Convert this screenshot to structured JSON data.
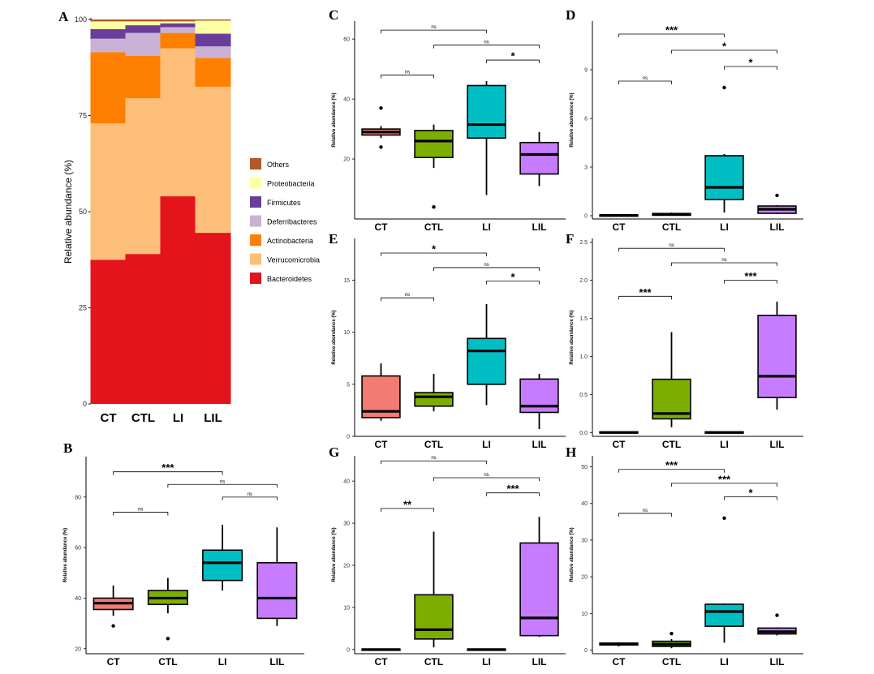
{
  "chart_data": [
    {
      "panel": "A",
      "type": "bar",
      "stacked": true,
      "categories": [
        "CT",
        "CTL",
        "LI",
        "LIL"
      ],
      "ylabel": "Relative abundance (%)",
      "ylim": [
        0,
        100
      ],
      "yticks": [
        "0",
        "25",
        "50",
        "75",
        "100"
      ],
      "series": [
        {
          "name": "Bacteroidetes",
          "color": "#E3141B",
          "values": [
            37.5,
            39,
            54,
            44.5
          ]
        },
        {
          "name": "Verrucomicrobia",
          "color": "#FDBE79",
          "values": [
            35.5,
            40.5,
            38.5,
            38
          ]
        },
        {
          "name": "Actinobacteria",
          "color": "#FF7F00",
          "values": [
            18.5,
            11,
            4,
            7.5
          ]
        },
        {
          "name": "Deferribacteres",
          "color": "#CAB2D6",
          "values": [
            3.5,
            6,
            1.5,
            3
          ]
        },
        {
          "name": "Firmicutes",
          "color": "#6A3D9A",
          "values": [
            2.5,
            2,
            1,
            3.3
          ]
        },
        {
          "name": "Proteobacteria",
          "color": "#FFFFA3",
          "values": [
            2,
            1,
            0.5,
            3.4
          ]
        },
        {
          "name": "Others",
          "color": "#B15928",
          "values": [
            0.5,
            0.5,
            0.5,
            0.3
          ]
        }
      ],
      "legend_order": [
        "Others",
        "Proteobacteria",
        "Firmicutes",
        "Deferribacteres",
        "Actinobacteria",
        "Verrucomicrobia",
        "Bacteroidetes"
      ]
    },
    {
      "panel": "B",
      "type": "box",
      "categories": [
        "CT",
        "CTL",
        "LI",
        "LIL"
      ],
      "ylabel": "Relative abundance (%)",
      "ylim": [
        18,
        96
      ],
      "yticks": [
        20,
        40,
        60,
        80
      ],
      "boxes": [
        {
          "min": 33,
          "q1": 35.5,
          "median": 38,
          "q3": 40,
          "max": 45,
          "outliers": [
            29
          ]
        },
        {
          "min": 34,
          "q1": 37.5,
          "median": 40,
          "q3": 43,
          "max": 48,
          "outliers": [
            24
          ]
        },
        {
          "min": 43,
          "q1": 47,
          "median": 54,
          "q3": 59,
          "max": 69,
          "outliers": []
        },
        {
          "min": 29,
          "q1": 32,
          "median": 40,
          "q3": 54,
          "max": 68,
          "outliers": []
        }
      ],
      "comparisons": [
        {
          "from": "CT",
          "to": "LI",
          "label": "***",
          "y": 90
        },
        {
          "from": "CT",
          "to": "CTL",
          "label": "ns",
          "y": 74
        },
        {
          "from": "CTL",
          "to": "LIL",
          "label": "ns",
          "y": 85
        },
        {
          "from": "LI",
          "to": "LIL",
          "label": "ns",
          "y": 80
        }
      ]
    },
    {
      "panel": "C",
      "type": "box",
      "categories": [
        "CT",
        "CTL",
        "LI",
        "LIL"
      ],
      "ylabel": "Relative abundance (%)",
      "ylim": [
        0,
        66
      ],
      "yticks": [
        20,
        40,
        60
      ],
      "boxes": [
        {
          "min": 27,
          "q1": 28,
          "median": 29,
          "q3": 30,
          "max": 31,
          "outliers": [
            37,
            24
          ]
        },
        {
          "min": 17,
          "q1": 20.5,
          "median": 26,
          "q3": 29.5,
          "max": 31.5,
          "outliers": [
            4
          ]
        },
        {
          "min": 8,
          "q1": 27,
          "median": 31.5,
          "q3": 44.5,
          "max": 46,
          "outliers": []
        },
        {
          "min": 11,
          "q1": 15,
          "median": 21.5,
          "q3": 25.5,
          "max": 29,
          "outliers": []
        }
      ],
      "comparisons": [
        {
          "from": "CT",
          "to": "LI",
          "label": "ns",
          "y": 63
        },
        {
          "from": "CT",
          "to": "CTL",
          "label": "ns",
          "y": 48
        },
        {
          "from": "CTL",
          "to": "LIL",
          "label": "ns",
          "y": 58
        },
        {
          "from": "LI",
          "to": "LIL",
          "label": "*",
          "y": 53
        }
      ]
    },
    {
      "panel": "D",
      "type": "box",
      "categories": [
        "CT",
        "CTL",
        "LI",
        "LIL"
      ],
      "ylabel": "Relative abundance (%)",
      "ylim": [
        -0.2,
        12
      ],
      "yticks": [
        0,
        3,
        6,
        9
      ],
      "boxes": [
        {
          "min": 0,
          "q1": 0,
          "median": 0.02,
          "q3": 0.05,
          "max": 0.07,
          "outliers": []
        },
        {
          "min": 0,
          "q1": 0.03,
          "median": 0.08,
          "q3": 0.14,
          "max": 0.2,
          "outliers": []
        },
        {
          "min": 0.2,
          "q1": 1,
          "median": 1.75,
          "q3": 3.7,
          "max": 3.8,
          "outliers": [
            7.9
          ]
        },
        {
          "min": 0.1,
          "q1": 0.15,
          "median": 0.4,
          "q3": 0.6,
          "max": 0.65,
          "outliers": [
            1.25
          ]
        }
      ],
      "comparisons": [
        {
          "from": "CT",
          "to": "LI",
          "label": "***",
          "y": 11.2
        },
        {
          "from": "CT",
          "to": "CTL",
          "label": "ns",
          "y": 8.3
        },
        {
          "from": "CTL",
          "to": "LIL",
          "label": "*",
          "y": 10.2
        },
        {
          "from": "LI",
          "to": "LIL",
          "label": "*",
          "y": 9.2
        }
      ]
    },
    {
      "panel": "E",
      "type": "box",
      "categories": [
        "CT",
        "CTL",
        "LI",
        "LIL"
      ],
      "ylabel": "Relative abundance (%)",
      "ylim": [
        0,
        19
      ],
      "yticks": [
        0,
        5,
        10,
        15
      ],
      "boxes": [
        {
          "min": 1.5,
          "q1": 1.8,
          "median": 2.4,
          "q3": 5.8,
          "max": 7,
          "outliers": []
        },
        {
          "min": 2.4,
          "q1": 2.9,
          "median": 3.8,
          "q3": 4.2,
          "max": 6,
          "outliers": []
        },
        {
          "min": 3,
          "q1": 5,
          "median": 8.2,
          "q3": 9.4,
          "max": 12.7,
          "outliers": []
        },
        {
          "min": 0.7,
          "q1": 2.3,
          "median": 2.9,
          "q3": 5.5,
          "max": 6,
          "outliers": []
        }
      ],
      "comparisons": [
        {
          "from": "CT",
          "to": "LI",
          "label": "*",
          "y": 17.6
        },
        {
          "from": "CT",
          "to": "CTL",
          "label": "ns",
          "y": 13.3
        },
        {
          "from": "CTL",
          "to": "LIL",
          "label": "ns",
          "y": 16.2
        },
        {
          "from": "LI",
          "to": "LIL",
          "label": "*",
          "y": 14.9
        }
      ]
    },
    {
      "panel": "F",
      "type": "box",
      "categories": [
        "CT",
        "CTL",
        "LI",
        "LIL"
      ],
      "ylabel": "Relative abundance (%)",
      "ylim": [
        -0.05,
        2.55
      ],
      "yticks": [
        "0.0",
        "0.5",
        "1.0",
        "1.5",
        "2.0",
        "2.5"
      ],
      "boxes": [
        {
          "min": 0,
          "q1": 0,
          "median": 0,
          "q3": 0.01,
          "max": 0.01,
          "outliers": []
        },
        {
          "min": 0.07,
          "q1": 0.18,
          "median": 0.25,
          "q3": 0.7,
          "max": 1.32,
          "outliers": []
        },
        {
          "min": 0,
          "q1": 0,
          "median": 0,
          "q3": 0.01,
          "max": 0.01,
          "outliers": []
        },
        {
          "min": 0.3,
          "q1": 0.46,
          "median": 0.74,
          "q3": 1.54,
          "max": 1.72,
          "outliers": []
        }
      ],
      "comparisons": [
        {
          "from": "CT",
          "to": "LI",
          "label": "ns",
          "y": 2.42
        },
        {
          "from": "CT",
          "to": "CTL",
          "label": "***",
          "y": 1.79
        },
        {
          "from": "CTL",
          "to": "LIL",
          "label": "ns",
          "y": 2.23
        },
        {
          "from": "LI",
          "to": "LIL",
          "label": "***",
          "y": 2.0
        }
      ]
    },
    {
      "panel": "G",
      "type": "box",
      "categories": [
        "CT",
        "CTL",
        "LI",
        "LIL"
      ],
      "ylabel": "Relative abundance (%)",
      "ylim": [
        -1,
        46
      ],
      "yticks": [
        0,
        10,
        20,
        30,
        40
      ],
      "boxes": [
        {
          "min": 0,
          "q1": 0,
          "median": 0,
          "q3": 0.1,
          "max": 0.1,
          "outliers": []
        },
        {
          "min": 0.5,
          "q1": 2.5,
          "median": 4.7,
          "q3": 13,
          "max": 28,
          "outliers": []
        },
        {
          "min": 0,
          "q1": 0,
          "median": 0,
          "q3": 0.1,
          "max": 0.1,
          "outliers": []
        },
        {
          "min": 3,
          "q1": 3.3,
          "median": 7.5,
          "q3": 25.3,
          "max": 31.5,
          "outliers": []
        }
      ],
      "comparisons": [
        {
          "from": "CT",
          "to": "LI",
          "label": "ns",
          "y": 44.8
        },
        {
          "from": "CT",
          "to": "CTL",
          "label": "**",
          "y": 33.5
        },
        {
          "from": "CTL",
          "to": "LIL",
          "label": "ns",
          "y": 40.8
        },
        {
          "from": "LI",
          "to": "LIL",
          "label": "***",
          "y": 37.2
        }
      ]
    },
    {
      "panel": "H",
      "type": "box",
      "categories": [
        "CT",
        "CTL",
        "LI",
        "LIL"
      ],
      "ylabel": "Relative abundance (%)",
      "ylim": [
        -1,
        53
      ],
      "yticks": [
        0,
        10,
        20,
        30,
        40,
        50
      ],
      "boxes": [
        {
          "min": 1,
          "q1": 1.4,
          "median": 1.6,
          "q3": 1.9,
          "max": 2.1,
          "outliers": []
        },
        {
          "min": 0.5,
          "q1": 1,
          "median": 1.6,
          "q3": 2.4,
          "max": 3,
          "outliers": [
            4.5
          ]
        },
        {
          "min": 2,
          "q1": 6.5,
          "median": 10.5,
          "q3": 12.5,
          "max": 12.7,
          "outliers": [
            36
          ]
        },
        {
          "min": 4,
          "q1": 4.4,
          "median": 5,
          "q3": 6,
          "max": 6.2,
          "outliers": [
            9.5
          ]
        }
      ],
      "comparisons": [
        {
          "from": "CT",
          "to": "LI",
          "label": "***",
          "y": 49.3
        },
        {
          "from": "CT",
          "to": "CTL",
          "label": "ns",
          "y": 37.3
        },
        {
          "from": "CTL",
          "to": "LIL",
          "label": "***",
          "y": 45.5
        },
        {
          "from": "LI",
          "to": "LIL",
          "label": "*",
          "y": 41.8
        }
      ]
    }
  ],
  "group_colors": {
    "CT": "#F27B74",
    "CTL": "#7CAE00",
    "LI": "#00BFC4",
    "LIL": "#C77CFF"
  }
}
